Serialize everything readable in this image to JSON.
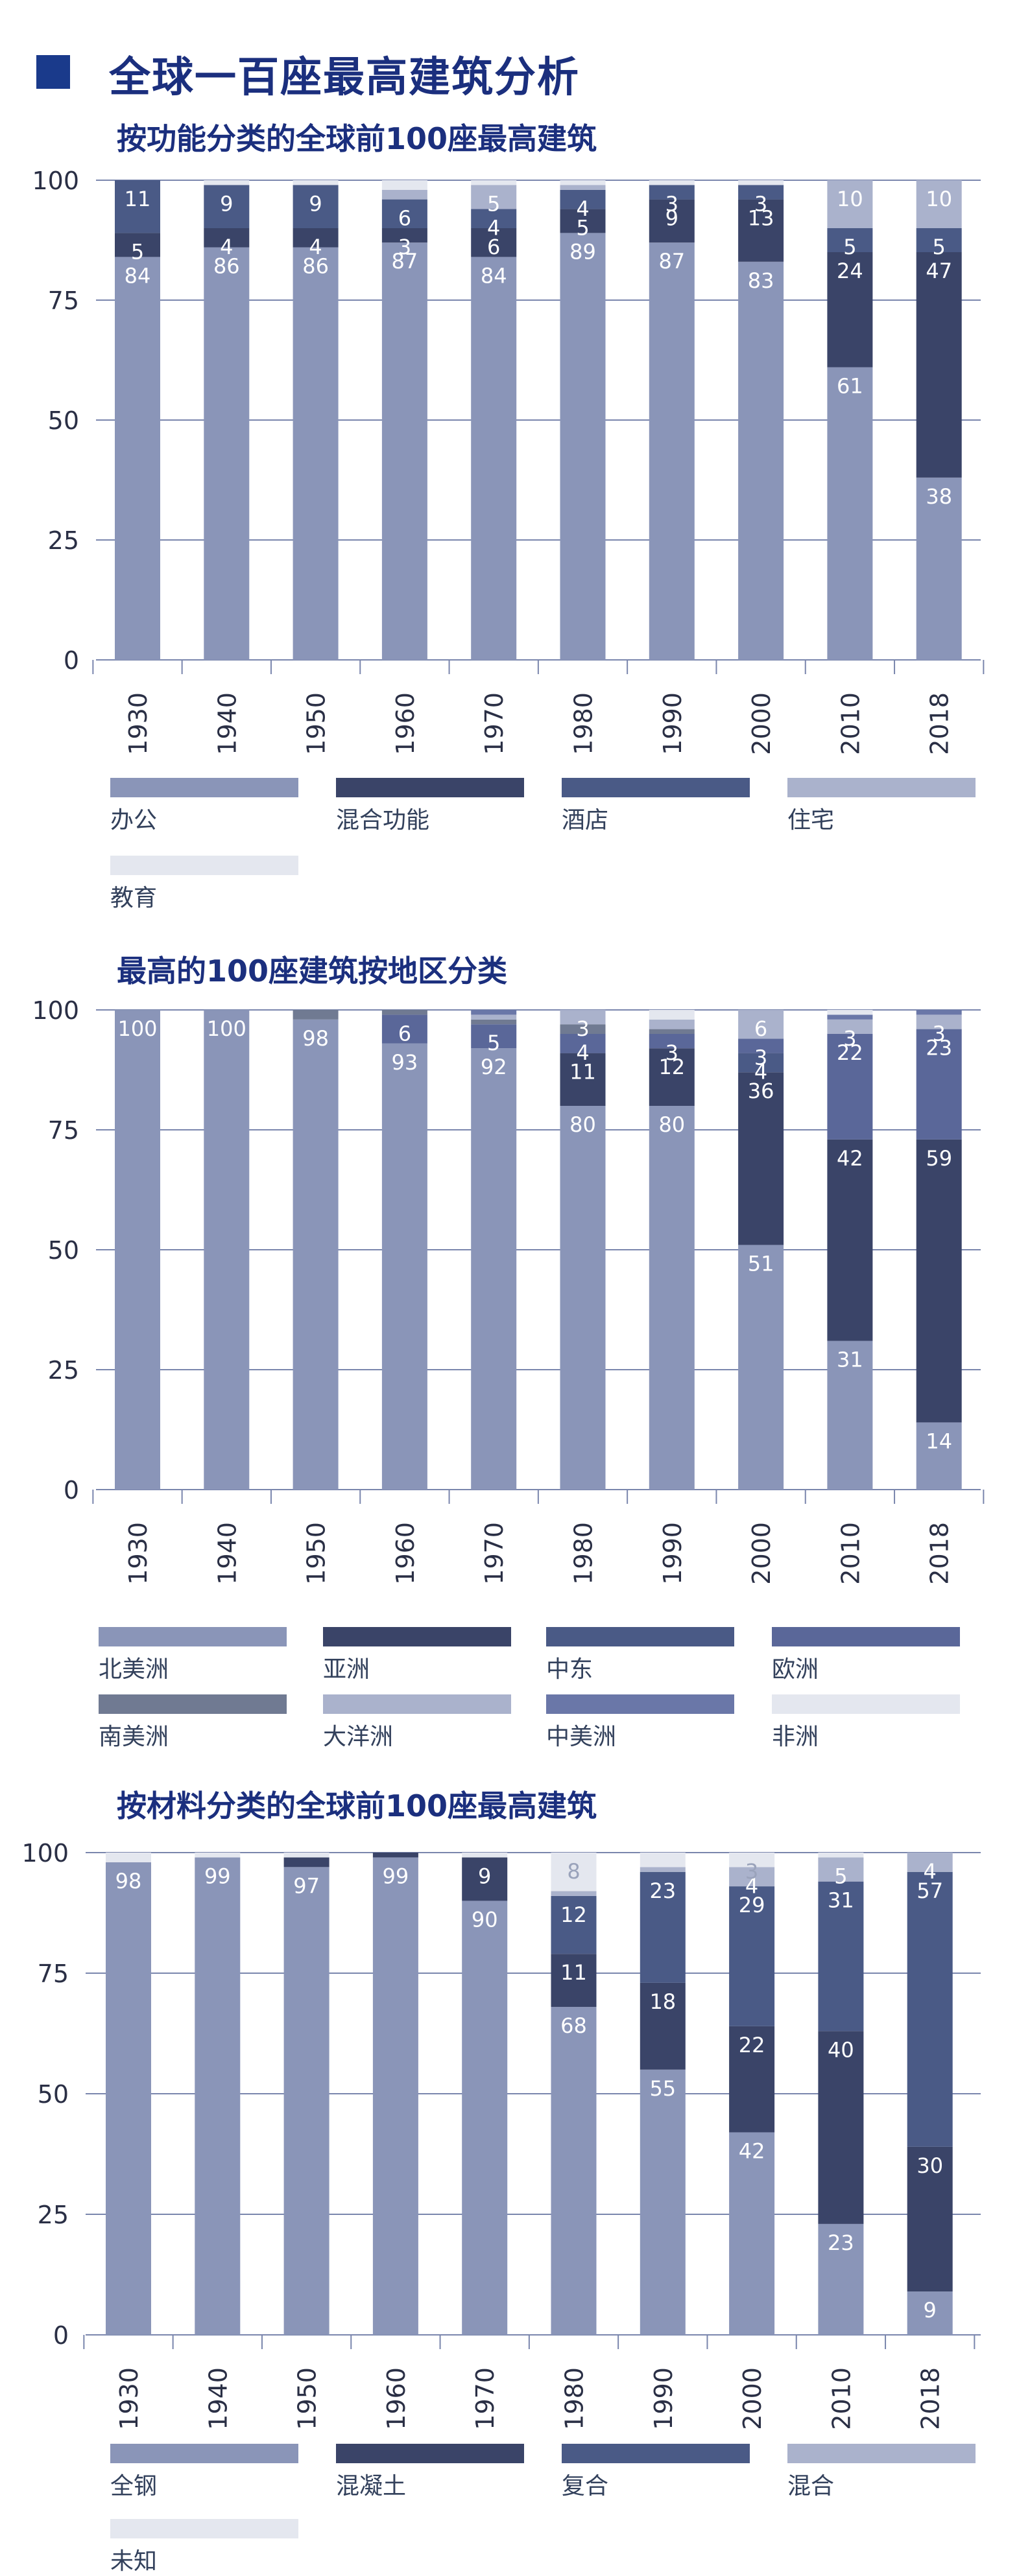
{
  "page_title": "全球一百座最高建筑分析",
  "chart_data": [
    {
      "type": "bar",
      "stacked": true,
      "title": "按功能分类的全球前100座最高建筑",
      "categories": [
        "1930",
        "1940",
        "1950",
        "1960",
        "1970",
        "1980",
        "1990",
        "2000",
        "2010",
        "2018"
      ],
      "ylim": [
        0,
        100
      ],
      "yticks": [
        "0",
        "25",
        "50",
        "75",
        "100"
      ],
      "grid": true,
      "legend_position": "bottom",
      "series": [
        {
          "name": "办公",
          "color": "#8a95b8",
          "values": [
            84,
            86,
            86,
            87,
            84,
            89,
            87,
            83,
            61,
            38
          ],
          "labels": [
            "84",
            "86",
            "86",
            "87",
            "84",
            "89",
            "87",
            "83",
            "61",
            "38"
          ]
        },
        {
          "name": "混合功能",
          "color": "#3a4468",
          "values": [
            5,
            4,
            4,
            3,
            6,
            5,
            9,
            13,
            24,
            47
          ],
          "labels": [
            "5",
            "4",
            "4",
            "3",
            "6",
            "5",
            "9",
            "13",
            "24",
            "47"
          ]
        },
        {
          "name": "酒店",
          "color": "#4a5a86",
          "values": [
            11,
            9,
            9,
            6,
            4,
            4,
            3,
            3,
            5,
            5
          ],
          "labels": [
            "11",
            "9",
            "9",
            "6",
            "4",
            "4",
            "3",
            "3",
            "5",
            "5"
          ]
        },
        {
          "name": "住宅",
          "color": "#aab2cc",
          "values": [
            0,
            0,
            0,
            2,
            5,
            1,
            0,
            0,
            10,
            10
          ],
          "labels": [
            "",
            "",
            "",
            "",
            "5",
            "",
            "",
            "",
            "10",
            "10"
          ]
        },
        {
          "name": "教育",
          "color": "#e4e7ef",
          "values": [
            0,
            1,
            1,
            2,
            1,
            1,
            1,
            1,
            0,
            0
          ],
          "labels": [
            "",
            "",
            "",
            "",
            "",
            "",
            "",
            "",
            "",
            ""
          ]
        }
      ]
    },
    {
      "type": "bar",
      "stacked": true,
      "title": "最高的100座建筑按地区分类",
      "categories": [
        "1930",
        "1940",
        "1950",
        "1960",
        "1970",
        "1980",
        "1990",
        "2000",
        "2010",
        "2018"
      ],
      "ylim": [
        0,
        100
      ],
      "yticks": [
        "0",
        "25",
        "50",
        "75",
        "100"
      ],
      "grid": true,
      "legend_position": "bottom",
      "series": [
        {
          "name": "北美洲",
          "color": "#8a95b8",
          "values": [
            100,
            100,
            98,
            93,
            92,
            80,
            80,
            51,
            31,
            14
          ],
          "labels": [
            "100",
            "100",
            "98",
            "93",
            "92",
            "80",
            "80",
            "51",
            "31",
            "14"
          ]
        },
        {
          "name": "亚洲",
          "color": "#3a4468",
          "values": [
            0,
            0,
            0,
            0,
            0,
            11,
            12,
            36,
            42,
            59
          ],
          "labels": [
            "",
            "",
            "",
            "",
            "",
            "11",
            "12",
            "36",
            "42",
            "59"
          ]
        },
        {
          "name": "中东",
          "color": "#4a5a86",
          "values": [
            0,
            0,
            0,
            0,
            0,
            0,
            0,
            4,
            0,
            0
          ],
          "labels": [
            "",
            "",
            "",
            "",
            "",
            "",
            "",
            "4",
            "",
            ""
          ]
        },
        {
          "name": "欧洲",
          "color": "#5a6799",
          "values": [
            0,
            0,
            0,
            6,
            5,
            4,
            3,
            3,
            22,
            23
          ],
          "labels": [
            "",
            "",
            "",
            "6",
            "5",
            "4",
            "3",
            "3",
            "22",
            "23"
          ]
        },
        {
          "name": "南美洲",
          "color": "#707a92",
          "values": [
            0,
            0,
            2,
            1,
            1,
            2,
            1,
            0,
            0,
            0
          ],
          "labels": [
            "",
            "",
            "",
            "",
            "",
            "",
            "",
            "",
            "",
            ""
          ]
        },
        {
          "name": "大洋洲",
          "color": "#aab2cc",
          "values": [
            0,
            0,
            0,
            0,
            1,
            3,
            2,
            6,
            3,
            3
          ],
          "labels": [
            "",
            "",
            "",
            "",
            "",
            "3",
            "",
            "6",
            "3",
            "3"
          ]
        },
        {
          "name": "中美洲",
          "color": "#6a77a8",
          "values": [
            0,
            0,
            0,
            0,
            1,
            0,
            0,
            0,
            1,
            1
          ],
          "labels": [
            "",
            "",
            "",
            "",
            "",
            "",
            "",
            "",
            "",
            ""
          ]
        },
        {
          "name": "非洲",
          "color": "#e4e7ef",
          "values": [
            0,
            0,
            0,
            0,
            0,
            0,
            2,
            0,
            1,
            0
          ],
          "labels": [
            "",
            "",
            "",
            "",
            "",
            "",
            "",
            "",
            "",
            ""
          ]
        }
      ]
    },
    {
      "type": "bar",
      "stacked": true,
      "title": "按材料分类的全球前100座最高建筑",
      "categories": [
        "1930",
        "1940",
        "1950",
        "1960",
        "1970",
        "1980",
        "1990",
        "2000",
        "2010",
        "2018"
      ],
      "ylim": [
        0,
        100
      ],
      "yticks": [
        "0",
        "25",
        "50",
        "75",
        "100"
      ],
      "grid": true,
      "legend_position": "bottom",
      "series": [
        {
          "name": "全钢",
          "color": "#8a95b8",
          "values": [
            98,
            99,
            97,
            99,
            90,
            68,
            55,
            42,
            23,
            9
          ],
          "labels": [
            "98",
            "99",
            "97",
            "99",
            "90",
            "68",
            "55",
            "42",
            "23",
            "9"
          ]
        },
        {
          "name": "混凝土",
          "color": "#3a4468",
          "values": [
            0,
            0,
            2,
            1,
            9,
            11,
            18,
            22,
            40,
            30
          ],
          "labels": [
            "",
            "",
            "",
            "",
            "9",
            "11",
            "18",
            "22",
            "40",
            "30"
          ]
        },
        {
          "name": "复合",
          "color": "#4a5a86",
          "values": [
            0,
            0,
            0,
            0,
            0,
            12,
            23,
            29,
            31,
            57
          ],
          "labels": [
            "",
            "",
            "",
            "",
            "",
            "12",
            "23",
            "29",
            "31",
            "57"
          ]
        },
        {
          "name": "混合",
          "color": "#aab2cc",
          "values": [
            0,
            0,
            0,
            0,
            0,
            1,
            1,
            4,
            5,
            4
          ],
          "labels": [
            "",
            "",
            "",
            "",
            "",
            "",
            "",
            "4",
            "5",
            "4"
          ]
        },
        {
          "name": "未知",
          "color": "#e4e7ef",
          "values": [
            2,
            1,
            1,
            0,
            1,
            8,
            3,
            3,
            1,
            0
          ],
          "labels": [
            "",
            "",
            "",
            "",
            "",
            "8",
            "",
            "3",
            "",
            ""
          ]
        }
      ]
    }
  ]
}
